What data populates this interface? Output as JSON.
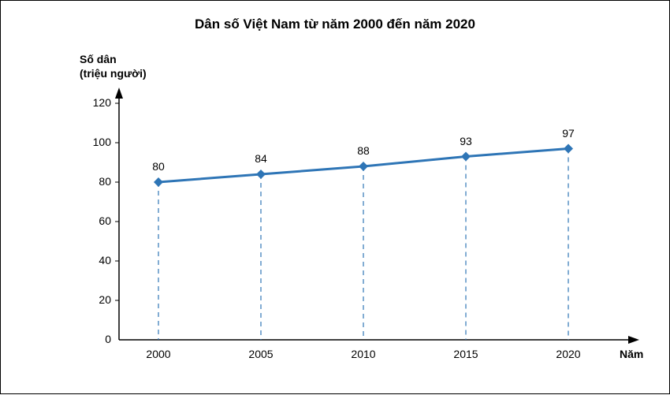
{
  "chart": {
    "type": "line",
    "title": "Dân số Việt Nam từ năm 2000 đến năm 2020",
    "title_fontsize": 17,
    "title_color": "#000000",
    "y_axis_label": "Số dân\n(triệu người)",
    "x_axis_label": "Năm",
    "axis_label_fontsize": 14,
    "axis_label_color": "#000000",
    "tick_fontsize": 14,
    "tick_color": "#000000",
    "data_label_fontsize": 14,
    "data_label_color": "#000000",
    "categories": [
      "2000",
      "2005",
      "2010",
      "2015",
      "2020"
    ],
    "values": [
      80,
      84,
      88,
      93,
      97
    ],
    "ylim": [
      0,
      120
    ],
    "ytick_step": 20,
    "yticks": [
      "0",
      "20",
      "40",
      "60",
      "80",
      "100",
      "120"
    ],
    "line_color": "#2e75b6",
    "line_width": 3,
    "marker_color": "#2e75b6",
    "marker_size": 6,
    "marker_shape": "diamond",
    "dropline_color": "#2e75b6",
    "dropline_dash": "6,5",
    "dropline_width": 1.2,
    "axis_color": "#000000",
    "axis_width": 1.5,
    "background_color": "#ffffff",
    "plot": {
      "x_origin": 150,
      "y_origin": 430,
      "y_top": 130,
      "x_positions": [
        200,
        330,
        460,
        590,
        720
      ],
      "x_arrow_tip": 800,
      "y_arrow_tip": 120
    }
  }
}
